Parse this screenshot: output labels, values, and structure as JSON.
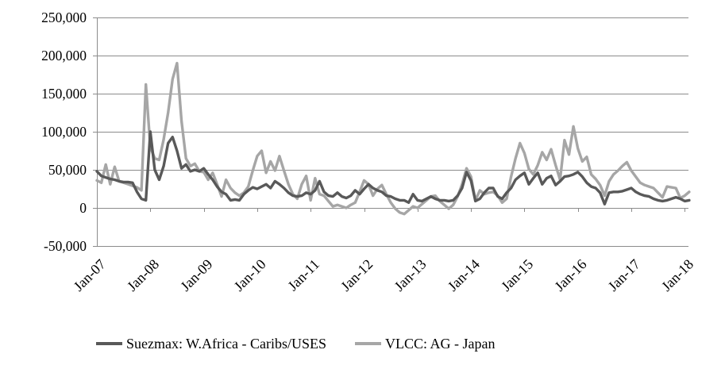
{
  "chart_data": {
    "type": "line",
    "title": "",
    "xlabel": "",
    "ylabel": "",
    "grid": true,
    "legend_position": "bottom",
    "ylim": [
      -50000,
      250000
    ],
    "y_step": 50000,
    "y_tick_labels": [
      "250,000",
      "200,000",
      "150,000",
      "100,000",
      "50,000",
      "0",
      "-50,000"
    ],
    "y_tick_values": [
      250000,
      200000,
      150000,
      100000,
      50000,
      0,
      -50000
    ],
    "x_tick_labels": [
      "Jan-07",
      "Jan-08",
      "Jan-09",
      "Jan-10",
      "Jan-11",
      "Jan-12",
      "Jan-13",
      "Jan-14",
      "Jan-15",
      "Jan-16",
      "Jan-17",
      "Jan-18"
    ],
    "x_frequency": "monthly",
    "x_range": "Jan-2007 to Feb-2018",
    "series": [
      {
        "name": "Suezmax: W.Africa - Caribs/USES",
        "color": "#595959",
        "values": [
          48000,
          42000,
          40000,
          38000,
          37000,
          35000,
          34000,
          34000,
          33000,
          21000,
          12000,
          10000,
          100000,
          50000,
          37000,
          55000,
          85000,
          93000,
          75000,
          52000,
          57000,
          48000,
          50000,
          48000,
          52000,
          44000,
          37000,
          28000,
          21000,
          18000,
          10000,
          11000,
          10000,
          18000,
          23000,
          27000,
          25000,
          28000,
          31000,
          26000,
          35000,
          31000,
          26000,
          20000,
          16000,
          15000,
          16000,
          20000,
          18000,
          23000,
          35000,
          21000,
          16000,
          15000,
          20000,
          15000,
          13000,
          16000,
          23000,
          18000,
          25000,
          31000,
          26000,
          23000,
          21000,
          16000,
          15000,
          12000,
          10000,
          10000,
          7000,
          18000,
          10000,
          9000,
          12000,
          15000,
          12000,
          10000,
          10000,
          9000,
          10000,
          16000,
          26000,
          47000,
          36000,
          9000,
          12000,
          20000,
          26000,
          26000,
          15000,
          12000,
          20000,
          26000,
          37000,
          42000,
          46000,
          31000,
          39000,
          46000,
          31000,
          39000,
          42000,
          30000,
          35000,
          41000,
          42000,
          44000,
          47000,
          41000,
          33000,
          28000,
          26000,
          20000,
          5000,
          20000,
          21000,
          21000,
          22000,
          24000,
          26000,
          21000,
          18000,
          16000,
          15000,
          12000,
          10000,
          9000,
          10000,
          12000,
          14000,
          12000,
          9000,
          10000
        ]
      },
      {
        "name": "VLCC: AG - Japan",
        "color": "#A6A6A6",
        "values": [
          36000,
          33000,
          57000,
          31000,
          54000,
          35000,
          33000,
          31000,
          29000,
          27000,
          23000,
          162000,
          80000,
          65000,
          63000,
          90000,
          125000,
          169000,
          190000,
          114000,
          65000,
          55000,
          58000,
          48000,
          47000,
          37000,
          46000,
          31000,
          15000,
          37000,
          26000,
          20000,
          16000,
          20000,
          28000,
          49000,
          68000,
          75000,
          46000,
          61000,
          49000,
          68000,
          49000,
          31000,
          18000,
          12000,
          31000,
          42000,
          10000,
          39000,
          18000,
          16000,
          9000,
          2000,
          4000,
          2000,
          0,
          4000,
          7000,
          21000,
          36000,
          31000,
          16000,
          25000,
          30000,
          18000,
          7000,
          -1000,
          -6000,
          -8000,
          -3000,
          2000,
          0,
          5000,
          10000,
          15000,
          16000,
          9000,
          4000,
          -1000,
          4000,
          15000,
          31000,
          52000,
          41000,
          10000,
          23000,
          18000,
          20000,
          21000,
          16000,
          7000,
          12000,
          41000,
          65000,
          85000,
          72000,
          51000,
          44000,
          56000,
          73000,
          63000,
          77000,
          56000,
          37000,
          89000,
          70000,
          107000,
          78000,
          61000,
          67000,
          44000,
          38000,
          30000,
          16000,
          35000,
          44000,
          49000,
          55000,
          60000,
          49000,
          41000,
          33000,
          30000,
          28000,
          26000,
          20000,
          14000,
          28000,
          27000,
          26000,
          13000,
          16000,
          21000
        ]
      }
    ],
    "axis_color": "#8c8c8c",
    "gridline_color": "#8c8c8c",
    "text_color": "#000000"
  }
}
